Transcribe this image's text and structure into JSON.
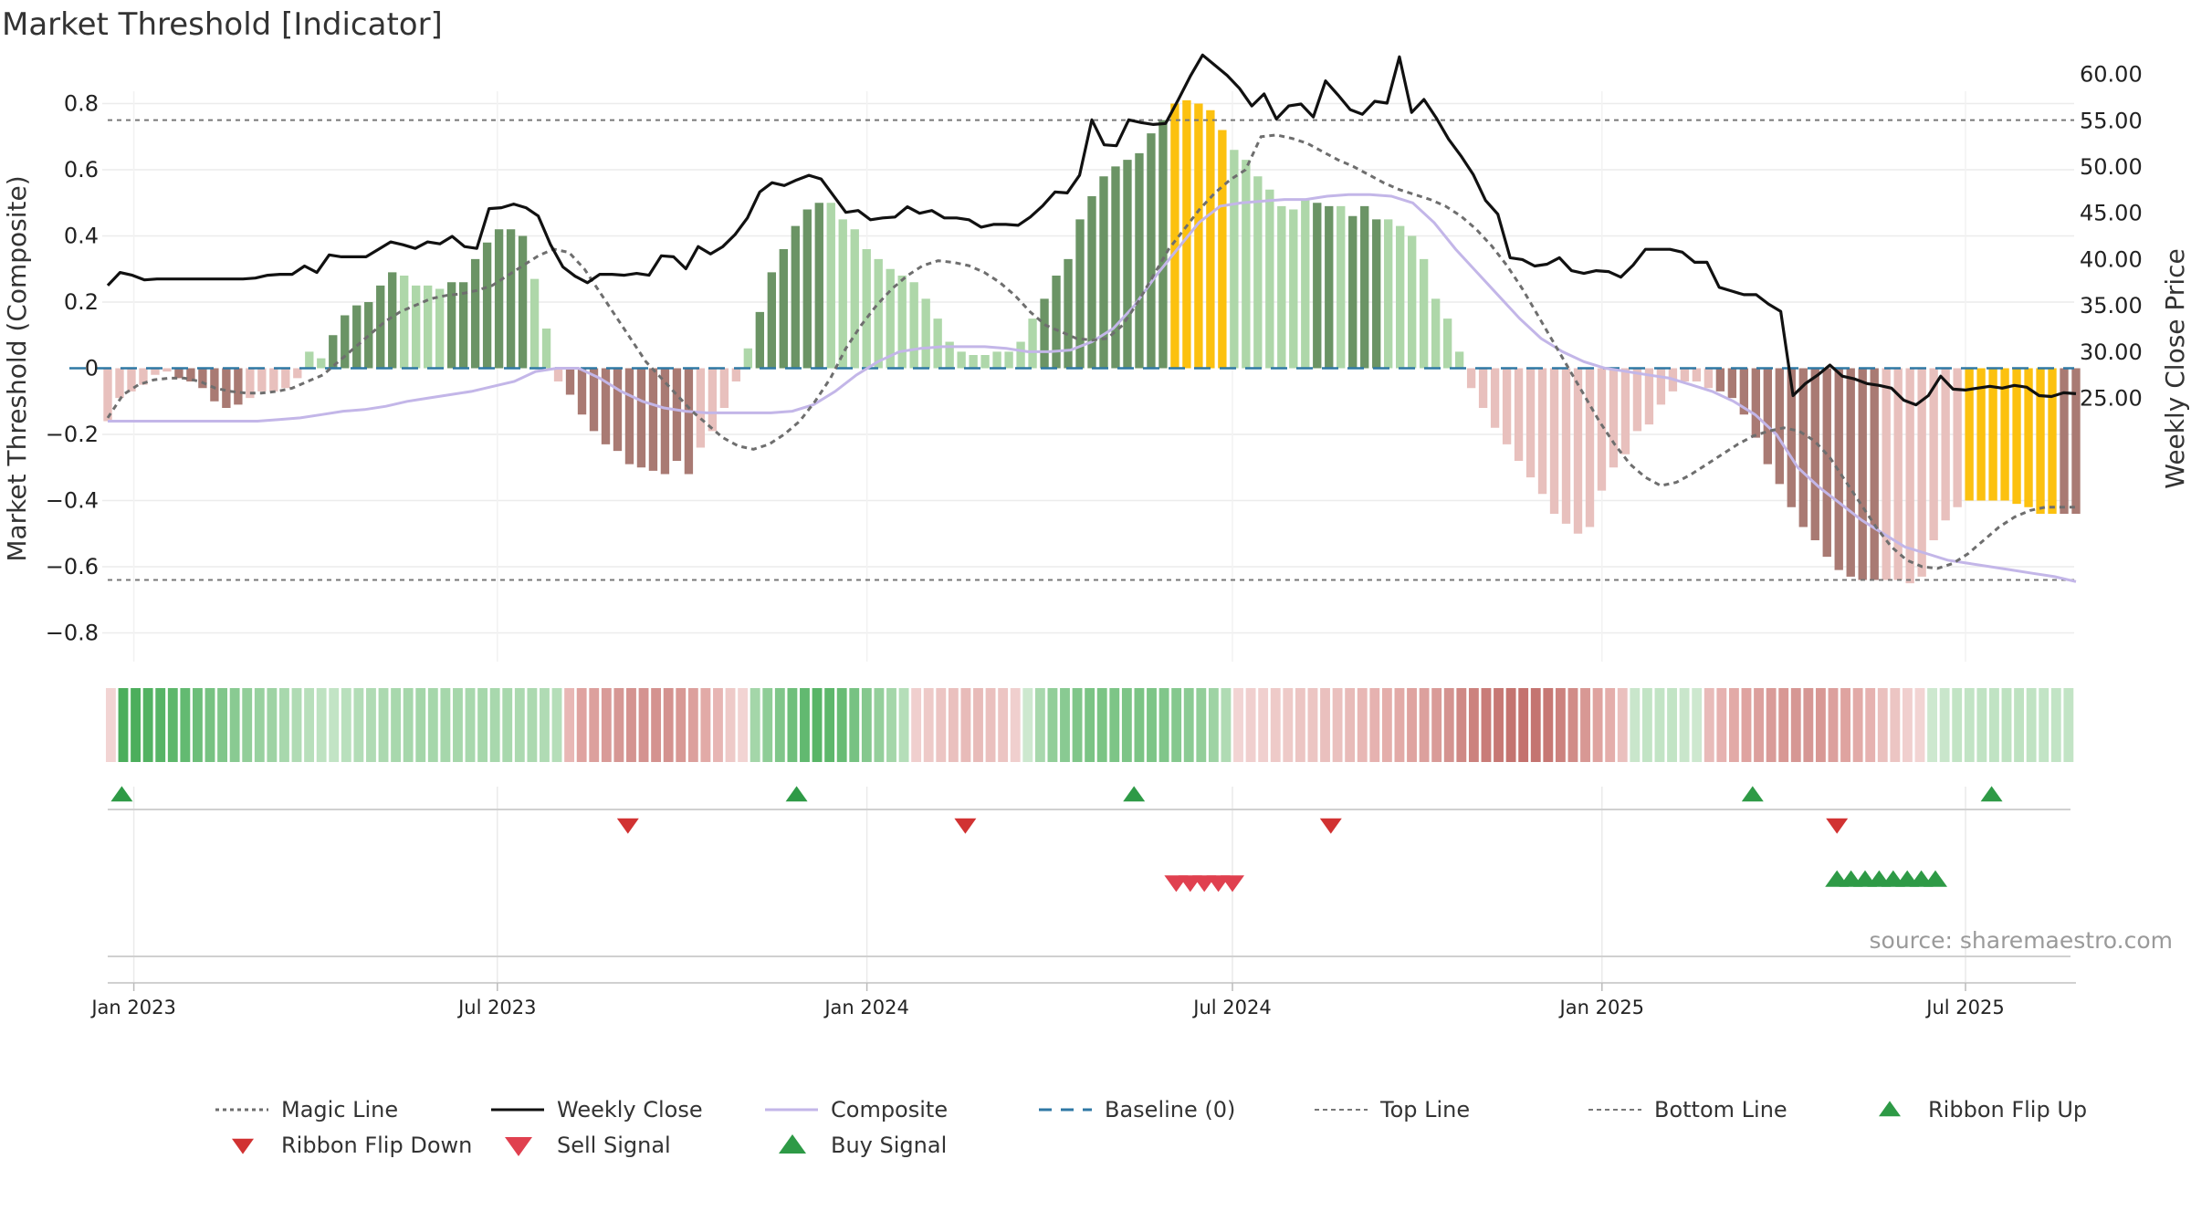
{
  "chart_data": {
    "type": "bar",
    "title": "Market Threshold [Indicator]",
    "ylabel_left": "Market Threshold (Composite)",
    "ylabel_right": "Weekly Close Price",
    "source": "source: sharemaestro.com",
    "left_axis": {
      "range": [
        -0.9,
        0.83
      ],
      "ticks": [
        0.8,
        0.6,
        0.4,
        0.2,
        0,
        -0.2,
        -0.4,
        -0.6,
        -0.8
      ],
      "tick_labels": [
        "0.8",
        "0.6",
        "0.4",
        "0.2",
        "0",
        "−0.2",
        "−0.4",
        "−0.6",
        "−0.8"
      ]
    },
    "right_axis": {
      "range": [
        22.0,
        63.0
      ],
      "ticks": [
        60,
        55,
        50,
        45,
        40,
        35,
        30,
        25
      ],
      "tick_labels": [
        "60.00",
        "55.00",
        "50.00",
        "45.00",
        "40.00",
        "35.00",
        "30.00",
        "25.00"
      ]
    },
    "x_axis": {
      "start": "2022-12-19",
      "end": "2025-08-25",
      "ticks": [
        "2023-01-01",
        "2023-07-01",
        "2024-01-01",
        "2024-07-01",
        "2025-01-01",
        "2025-07-01"
      ],
      "tick_labels": [
        "Jan 2023",
        "Jul 2023",
        "Jan 2024",
        "Jul 2024",
        "Jan 2025",
        "Jul 2025"
      ]
    },
    "top_line": 0.75,
    "bottom_line": -0.64,
    "baseline": 0,
    "grid": true,
    "legend_position": "bottom",
    "legend": [
      "Magic Line",
      "Weekly Close",
      "Composite",
      "Baseline (0)",
      "Top Line",
      "Bottom Line",
      "Ribbon Flip Up",
      "Ribbon Flip Down",
      "Sell Signal",
      "Buy Signal"
    ],
    "colors": {
      "strong_pos": "#6b9465",
      "weak_pos": "#aed7a9",
      "strong_neg": "#a97a73",
      "weak_neg": "#e8c0bd",
      "extreme": "#fcc10f",
      "weekly_close": "#111111",
      "magic_line": "#6e6e6e",
      "composite": "#c3b6e8",
      "baseline": "#2f78a4",
      "threshold_lines": "#777777",
      "flip_up": "#2e9a46",
      "flip_down": "#d13232",
      "sell": "#e0404f",
      "buy": "#2e9a46"
    },
    "bars": [
      -0.16,
      -0.09,
      -0.07,
      -0.05,
      -0.02,
      -0.01,
      -0.03,
      -0.04,
      -0.06,
      -0.1,
      -0.12,
      -0.11,
      -0.09,
      -0.07,
      -0.07,
      -0.06,
      -0.03,
      0.05,
      0.03,
      0.1,
      0.16,
      0.19,
      0.2,
      0.25,
      0.29,
      0.28,
      0.25,
      0.25,
      0.24,
      0.26,
      0.26,
      0.33,
      0.38,
      0.42,
      0.42,
      0.4,
      0.27,
      0.12,
      -0.04,
      -0.08,
      -0.14,
      -0.19,
      -0.23,
      -0.25,
      -0.29,
      -0.3,
      -0.31,
      -0.32,
      -0.28,
      -0.32,
      -0.24,
      -0.19,
      -0.12,
      -0.04,
      0.06,
      0.17,
      0.29,
      0.36,
      0.43,
      0.48,
      0.5,
      0.5,
      0.45,
      0.42,
      0.36,
      0.33,
      0.3,
      0.28,
      0.26,
      0.21,
      0.15,
      0.08,
      0.05,
      0.04,
      0.04,
      0.05,
      0.05,
      0.08,
      0.15,
      0.21,
      0.28,
      0.33,
      0.45,
      0.52,
      0.58,
      0.61,
      0.63,
      0.65,
      0.71,
      0.75,
      0.8,
      0.81,
      0.8,
      0.78,
      0.72,
      0.66,
      0.63,
      0.58,
      0.54,
      0.49,
      0.48,
      0.51,
      0.5,
      0.49,
      0.49,
      0.46,
      0.49,
      0.45,
      0.45,
      0.43,
      0.4,
      0.33,
      0.21,
      0.15,
      0.05,
      -0.06,
      -0.12,
      -0.18,
      -0.23,
      -0.28,
      -0.33,
      -0.38,
      -0.44,
      -0.47,
      -0.5,
      -0.48,
      -0.37,
      -0.3,
      -0.26,
      -0.19,
      -0.17,
      -0.11,
      -0.07,
      -0.04,
      -0.04,
      -0.06,
      -0.07,
      -0.09,
      -0.14,
      -0.21,
      -0.29,
      -0.35,
      -0.42,
      -0.48,
      -0.52,
      -0.57,
      -0.61,
      -0.63,
      -0.64,
      -0.64,
      -0.64,
      -0.64,
      -0.65,
      -0.63,
      -0.52,
      -0.46,
      -0.42,
      -0.4,
      -0.4,
      -0.4,
      -0.4,
      -0.41,
      -0.42,
      -0.44,
      -0.44,
      -0.44,
      -0.44
    ],
    "extreme_ranges": [
      [
        90,
        94
      ],
      [
        157,
        164
      ]
    ],
    "strong_ranges": [
      [
        6,
        11
      ],
      [
        19,
        24
      ],
      [
        29,
        35
      ],
      [
        39,
        49
      ],
      [
        55,
        60
      ],
      [
        79,
        89
      ],
      [
        102,
        103
      ],
      [
        105,
        107
      ],
      [
        136,
        149
      ],
      [
        165,
        170
      ]
    ],
    "weekly_close": [
      37.2,
      38.6,
      38.3,
      37.8,
      37.9,
      37.9,
      37.9,
      37.9,
      37.9,
      37.9,
      37.9,
      37.9,
      38.0,
      38.3,
      38.4,
      38.4,
      39.3,
      38.6,
      40.5,
      40.3,
      40.3,
      40.3,
      41.1,
      41.9,
      41.6,
      41.2,
      41.9,
      41.7,
      42.5,
      41.4,
      41.2,
      45.5,
      45.6,
      46.0,
      45.6,
      44.7,
      41.6,
      39.2,
      38.2,
      37.5,
      38.4,
      38.4,
      38.3,
      38.5,
      38.3,
      40.4,
      40.3,
      39.0,
      41.4,
      40.6,
      41.4,
      42.7,
      44.5,
      47.3,
      48.3,
      48.0,
      48.6,
      49.1,
      48.7,
      46.9,
      45.1,
      45.3,
      44.3,
      44.5,
      44.6,
      45.7,
      45.0,
      45.3,
      44.5,
      44.5,
      44.3,
      43.5,
      43.8,
      43.8,
      43.7,
      44.6,
      45.8,
      47.3,
      47.2,
      49.1,
      55.1,
      52.4,
      52.3,
      55.1,
      54.8,
      54.6,
      54.7,
      57.2,
      59.8,
      62.1,
      61.0,
      59.9,
      58.5,
      56.6,
      57.9,
      55.2,
      56.6,
      56.8,
      55.4,
      59.3,
      57.8,
      56.2,
      55.7,
      57.1,
      56.9,
      61.9,
      55.9,
      57.3,
      55.3,
      53.0,
      51.2,
      49.2,
      46.4,
      44.9,
      40.2,
      40.0,
      39.3,
      39.5,
      40.2,
      38.8,
      38.5,
      38.8,
      38.7,
      38.1,
      39.4,
      41.1,
      41.1,
      41.1,
      40.8,
      39.7,
      39.7,
      37.0,
      36.6,
      36.2,
      36.2,
      35.2,
      34.4,
      25.3,
      26.6,
      27.5,
      28.6,
      27.4,
      27.1,
      26.6,
      26.4,
      26.1,
      24.8,
      24.3,
      25.3,
      27.4,
      26.0,
      25.9,
      26.1,
      26.3,
      26.1,
      26.4,
      26.2,
      25.3,
      25.2,
      25.6,
      25.5
    ],
    "magic_line": [
      -0.15,
      -0.08,
      -0.05,
      -0.035,
      -0.03,
      -0.03,
      -0.04,
      -0.06,
      -0.07,
      -0.075,
      -0.075,
      -0.07,
      -0.06,
      -0.04,
      -0.02,
      0.02,
      0.06,
      0.1,
      0.14,
      0.17,
      0.19,
      0.21,
      0.22,
      0.225,
      0.235,
      0.25,
      0.28,
      0.31,
      0.34,
      0.36,
      0.35,
      0.3,
      0.23,
      0.16,
      0.09,
      0.02,
      -0.03,
      -0.08,
      -0.13,
      -0.17,
      -0.21,
      -0.235,
      -0.245,
      -0.23,
      -0.2,
      -0.16,
      -0.1,
      -0.03,
      0.06,
      0.13,
      0.19,
      0.24,
      0.28,
      0.31,
      0.325,
      0.32,
      0.31,
      0.29,
      0.26,
      0.22,
      0.17,
      0.13,
      0.11,
      0.09,
      0.085,
      0.09,
      0.13,
      0.2,
      0.28,
      0.36,
      0.42,
      0.48,
      0.53,
      0.57,
      0.6,
      0.7,
      0.705,
      0.695,
      0.68,
      0.655,
      0.63,
      0.61,
      0.585,
      0.56,
      0.54,
      0.525,
      0.51,
      0.49,
      0.46,
      0.42,
      0.37,
      0.31,
      0.24,
      0.16,
      0.08,
      0.0,
      -0.08,
      -0.16,
      -0.23,
      -0.29,
      -0.33,
      -0.355,
      -0.345,
      -0.32,
      -0.29,
      -0.26,
      -0.23,
      -0.205,
      -0.19,
      -0.18,
      -0.19,
      -0.22,
      -0.27,
      -0.34,
      -0.41,
      -0.48,
      -0.54,
      -0.58,
      -0.6,
      -0.605,
      -0.59,
      -0.56,
      -0.52,
      -0.48,
      -0.45,
      -0.43,
      -0.42,
      -0.42,
      -0.42
    ],
    "composite_line": [
      -0.16,
      -0.16,
      -0.16,
      -0.16,
      -0.16,
      -0.16,
      -0.16,
      -0.16,
      -0.155,
      -0.15,
      -0.14,
      -0.13,
      -0.125,
      -0.115,
      -0.1,
      -0.09,
      -0.08,
      -0.07,
      -0.055,
      -0.04,
      -0.01,
      0.0,
      0.0,
      -0.03,
      -0.07,
      -0.1,
      -0.12,
      -0.13,
      -0.135,
      -0.135,
      -0.135,
      -0.135,
      -0.13,
      -0.11,
      -0.07,
      -0.02,
      0.02,
      0.05,
      0.06,
      0.065,
      0.065,
      0.065,
      0.06,
      0.05,
      0.05,
      0.055,
      0.08,
      0.12,
      0.19,
      0.28,
      0.36,
      0.44,
      0.49,
      0.5,
      0.505,
      0.51,
      0.51,
      0.52,
      0.525,
      0.525,
      0.52,
      0.5,
      0.44,
      0.36,
      0.29,
      0.22,
      0.15,
      0.09,
      0.05,
      0.02,
      0.0,
      -0.01,
      -0.02,
      -0.03,
      -0.05,
      -0.07,
      -0.1,
      -0.14,
      -0.2,
      -0.3,
      -0.36,
      -0.41,
      -0.46,
      -0.5,
      -0.54,
      -0.56,
      -0.58,
      -0.59,
      -0.6,
      -0.61,
      -0.62,
      -0.63,
      -0.645
    ],
    "ribbon": [
      [
        0,
        "#f2d4d3"
      ],
      [
        1,
        "#4cae5c"
      ],
      [
        2,
        "#4cae5c"
      ],
      [
        3,
        "#52b262"
      ],
      [
        4,
        "#57b466"
      ],
      [
        5,
        "#5db76b"
      ],
      [
        6,
        "#63ba71"
      ],
      [
        7,
        "#6dbe79"
      ],
      [
        8,
        "#77c282"
      ],
      [
        9,
        "#80c68a"
      ],
      [
        10,
        "#89ca92"
      ],
      [
        11,
        "#92ce99"
      ],
      [
        12,
        "#98d19f"
      ],
      [
        13,
        "#9ed3a4"
      ],
      [
        14,
        "#a8d8ad"
      ],
      [
        15,
        "#b0dbb4"
      ],
      [
        16,
        "#b8dfbb"
      ],
      [
        17,
        "#bee2c1"
      ],
      [
        18,
        "#c2e4c5"
      ],
      [
        19,
        "#b9e0bd"
      ],
      [
        20,
        "#b3ddb7"
      ],
      [
        21,
        "#b0dbb4"
      ],
      [
        22,
        "#acd9b0"
      ],
      [
        23,
        "#a8d8ad"
      ],
      [
        24,
        "#a6d7ab"
      ],
      [
        25,
        "#a4d6a9"
      ],
      [
        26,
        "#a6d7ab"
      ],
      [
        27,
        "#a6d7ab"
      ],
      [
        28,
        "#a6d7ab"
      ],
      [
        29,
        "#a8d8ad"
      ],
      [
        30,
        "#a6d7ab"
      ],
      [
        31,
        "#a8d8ad"
      ],
      [
        32,
        "#a8d8ad"
      ],
      [
        33,
        "#acd9b0"
      ],
      [
        34,
        "#acd9b0"
      ],
      [
        35,
        "#b0dbb4"
      ],
      [
        36,
        "#b5deb9"
      ],
      [
        37,
        "#e8b7b5"
      ],
      [
        38,
        "#dfa3a0"
      ],
      [
        39,
        "#dca09d"
      ],
      [
        40,
        "#d99b98"
      ],
      [
        41,
        "#d69794"
      ],
      [
        42,
        "#d49390"
      ],
      [
        43,
        "#d49390"
      ],
      [
        44,
        "#d4928f"
      ],
      [
        45,
        "#d4928f"
      ],
      [
        46,
        "#d89894"
      ],
      [
        47,
        "#dca09d"
      ],
      [
        48,
        "#e2aaa7"
      ],
      [
        49,
        "#e7b5b3"
      ],
      [
        50,
        "#eecac8"
      ],
      [
        51,
        "#f2d4d3"
      ],
      [
        52,
        "#a4d6a9"
      ],
      [
        53,
        "#8fcd97"
      ],
      [
        54,
        "#80c68a"
      ],
      [
        55,
        "#6fbf7b"
      ],
      [
        56,
        "#62b970"
      ],
      [
        57,
        "#58b567"
      ],
      [
        58,
        "#5db76b"
      ],
      [
        59,
        "#68bc75"
      ],
      [
        60,
        "#77c282"
      ],
      [
        61,
        "#85c88e"
      ],
      [
        62,
        "#94cf9b"
      ],
      [
        63,
        "#a4d6a9"
      ],
      [
        64,
        "#b5deb9"
      ],
      [
        65,
        "#f0cfce"
      ],
      [
        66,
        "#eecac8"
      ],
      [
        67,
        "#ecc5c3"
      ],
      [
        68,
        "#eac0be"
      ],
      [
        69,
        "#e8bbb9"
      ],
      [
        70,
        "#e8bbb9"
      ],
      [
        71,
        "#eac0be"
      ],
      [
        72,
        "#ecc5c3"
      ],
      [
        73,
        "#f0cfce"
      ],
      [
        74,
        "#cde8cf"
      ],
      [
        75,
        "#a8d8ad"
      ],
      [
        76,
        "#92ce99"
      ],
      [
        77,
        "#89ca92"
      ],
      [
        78,
        "#80c68a"
      ],
      [
        79,
        "#7bc485"
      ],
      [
        80,
        "#7bc485"
      ],
      [
        81,
        "#7dc587"
      ],
      [
        82,
        "#7dc587"
      ],
      [
        83,
        "#7bc485"
      ],
      [
        84,
        "#7dc587"
      ],
      [
        85,
        "#80c68a"
      ],
      [
        86,
        "#85c88e"
      ],
      [
        87,
        "#8bcb93"
      ],
      [
        88,
        "#92ce99"
      ],
      [
        89,
        "#9ed3a4"
      ],
      [
        90,
        "#b0dbb4"
      ],
      [
        91,
        "#f2d4d3"
      ],
      [
        92,
        "#f0cfce"
      ],
      [
        93,
        "#f0cfce"
      ],
      [
        94,
        "#eecac8"
      ],
      [
        95,
        "#eecac8"
      ],
      [
        96,
        "#ecc5c3"
      ],
      [
        97,
        "#ecc5c3"
      ],
      [
        98,
        "#eac0be"
      ],
      [
        99,
        "#eac0be"
      ],
      [
        100,
        "#e8bbb9"
      ],
      [
        101,
        "#e8b7b5"
      ],
      [
        102,
        "#e6b2b0"
      ],
      [
        103,
        "#e4aeab"
      ],
      [
        104,
        "#e2aaa7"
      ],
      [
        105,
        "#dfa3a0"
      ],
      [
        106,
        "#dca09d"
      ],
      [
        107,
        "#d99b98"
      ],
      [
        108,
        "#d49390"
      ],
      [
        109,
        "#cf8985"
      ],
      [
        110,
        "#cc827e"
      ],
      [
        111,
        "#c97c78"
      ],
      [
        112,
        "#c77874"
      ],
      [
        113,
        "#c47470"
      ],
      [
        114,
        "#c4726e"
      ],
      [
        115,
        "#c47470"
      ],
      [
        116,
        "#c77874"
      ],
      [
        117,
        "#cc827e"
      ],
      [
        118,
        "#d18c88"
      ],
      [
        119,
        "#d89894"
      ],
      [
        120,
        "#dfa3a0"
      ],
      [
        121,
        "#e4aeab"
      ],
      [
        122,
        "#eac0be"
      ],
      [
        123,
        "#c9e6cb"
      ],
      [
        124,
        "#c2e4c5"
      ],
      [
        125,
        "#c2e4c5"
      ],
      [
        126,
        "#c2e4c5"
      ],
      [
        127,
        "#c9e6cb"
      ],
      [
        128,
        "#cde8cf"
      ],
      [
        129,
        "#e8bbb9"
      ],
      [
        130,
        "#e6b2b0"
      ],
      [
        131,
        "#e2aaa7"
      ],
      [
        132,
        "#dfa3a0"
      ],
      [
        133,
        "#dca09d"
      ],
      [
        134,
        "#d99b98"
      ],
      [
        135,
        "#d89894"
      ],
      [
        136,
        "#d69794"
      ],
      [
        137,
        "#d69794"
      ],
      [
        138,
        "#d89894"
      ],
      [
        139,
        "#dca09d"
      ],
      [
        140,
        "#dfa3a0"
      ],
      [
        141,
        "#e2aaa7"
      ],
      [
        142,
        "#e6b2b0"
      ],
      [
        143,
        "#eac0be"
      ],
      [
        144,
        "#ecc5c3"
      ],
      [
        145,
        "#f0cfce"
      ],
      [
        146,
        "#f2d4d3"
      ],
      [
        147,
        "#cde8cf"
      ],
      [
        148,
        "#c9e6cb"
      ],
      [
        149,
        "#c2e4c5"
      ],
      [
        150,
        "#c2e4c5"
      ],
      [
        151,
        "#c0e3c3"
      ],
      [
        152,
        "#c0e3c3"
      ],
      [
        153,
        "#bee2c1"
      ],
      [
        154,
        "#bee2c1"
      ],
      [
        155,
        "#c0e3c3"
      ],
      [
        156,
        "#c2e4c5"
      ],
      [
        157,
        "#c2e4c5"
      ],
      [
        158,
        "#c2e4c5"
      ]
    ],
    "ribbon_flip_up": [
      "2022-12-26",
      "2023-11-27",
      "2024-05-13",
      "2025-03-17",
      "2025-07-14"
    ],
    "ribbon_flip_down": [
      "2023-09-04",
      "2024-02-19",
      "2024-08-19",
      "2025-04-28"
    ],
    "sell_signals": [
      "2024-06-03",
      "2024-06-10",
      "2024-06-17",
      "2024-06-24",
      "2024-07-01"
    ],
    "buy_signals": [
      "2025-04-28",
      "2025-05-05",
      "2025-05-12",
      "2025-05-19",
      "2025-05-26",
      "2025-06-02",
      "2025-06-09",
      "2025-06-16"
    ]
  }
}
